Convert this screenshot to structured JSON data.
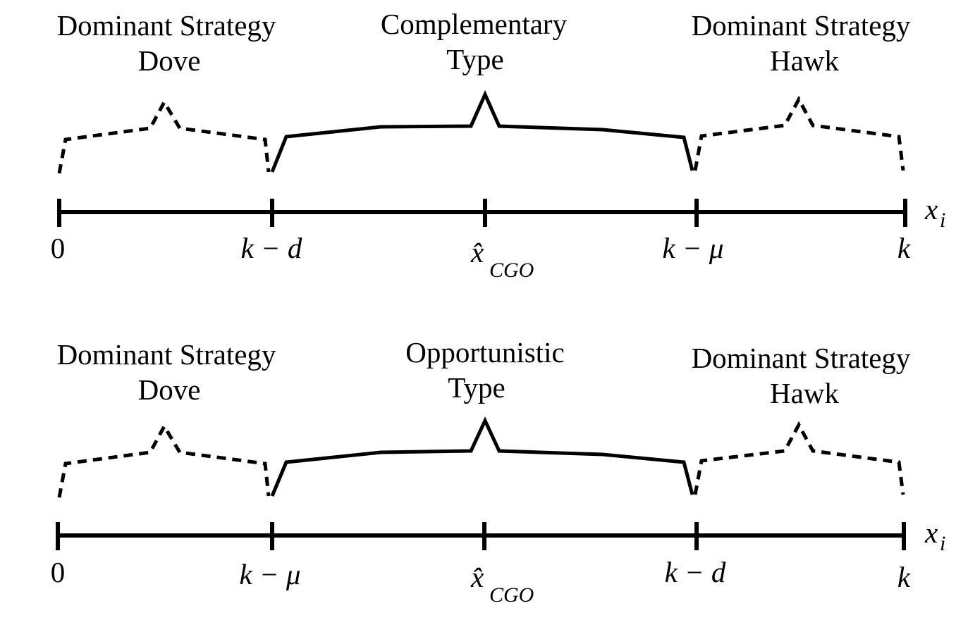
{
  "panels": [
    {
      "left_region": {
        "line1": "Dominant Strategy",
        "line2": "Dove"
      },
      "middle_region": {
        "line1": "Complementary",
        "line2": "Type"
      },
      "right_region": {
        "line1": "Dominant Strategy",
        "line2": "Hawk"
      },
      "ticks": {
        "t0": "0",
        "t1_base": "k − d",
        "t2_base": "x̂",
        "t2_sub": "CGO",
        "t3_base": "k − μ",
        "t4_base": "k"
      },
      "axis_label": {
        "base": "x",
        "sub": "i"
      }
    },
    {
      "left_region": {
        "line1": "Dominant Strategy",
        "line2": "Dove"
      },
      "middle_region": {
        "line1": "Opportunistic",
        "line2": "Type"
      },
      "right_region": {
        "line1": "Dominant Strategy",
        "line2": "Hawk"
      },
      "ticks": {
        "t0": "0",
        "t1_base": "k − μ",
        "t2_base": "x̂",
        "t2_sub": "CGO",
        "t3_base": "k − d",
        "t4_base": "k"
      },
      "axis_label": {
        "base": "x",
        "sub": "i"
      }
    }
  ],
  "colors": {
    "ink": "#000000",
    "background": "#ffffff"
  }
}
